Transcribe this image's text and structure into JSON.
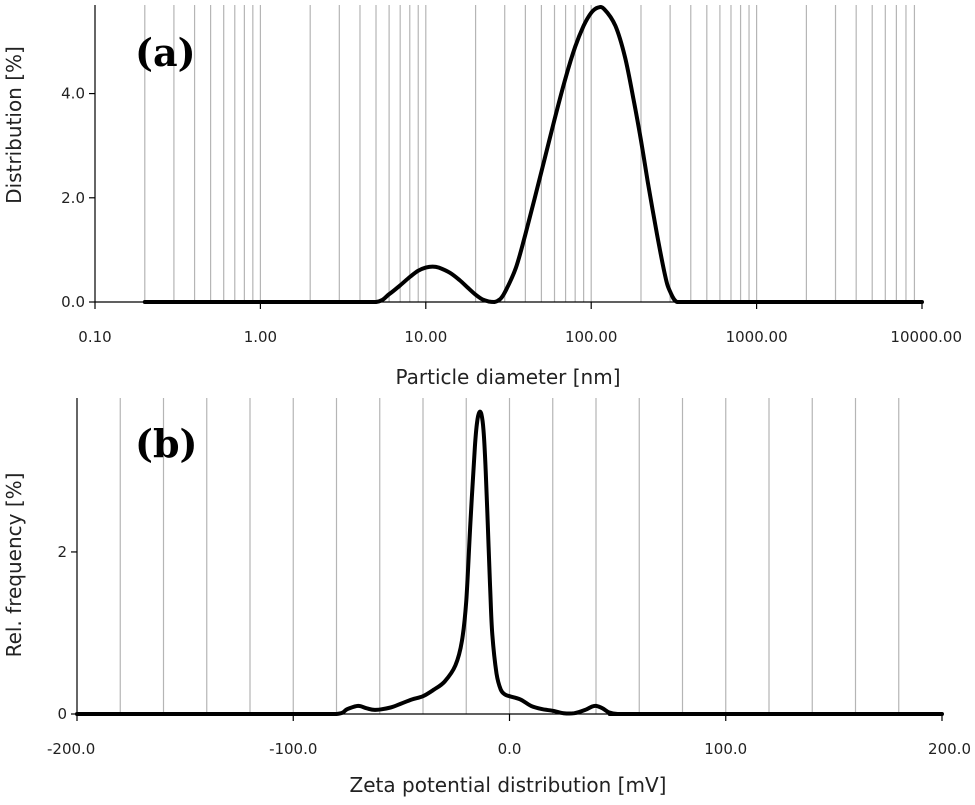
{
  "chart_data": [
    {
      "type": "line",
      "panel_label": "(a)",
      "xlabel": "Particle diameter [nm]",
      "ylabel": "Distribution [%]",
      "xscale": "log",
      "xlim": [
        0.1,
        10000
      ],
      "ylim": [
        0,
        5.7
      ],
      "xticks": [
        {
          "value": 0.1,
          "label": "0.10"
        },
        {
          "value": 1,
          "label": "1.00"
        },
        {
          "value": 10,
          "label": "10.00"
        },
        {
          "value": 100,
          "label": "100.00"
        },
        {
          "value": 1000,
          "label": "1000.00"
        },
        {
          "value": 10000,
          "label": "10000.00"
        }
      ],
      "yticks": [
        {
          "value": 0,
          "label": "0.0"
        },
        {
          "value": 2,
          "label": "2.0"
        },
        {
          "value": 4,
          "label": "4.0"
        }
      ],
      "grid": "vertical",
      "series": [
        {
          "x": [
            0.2,
            1,
            3,
            5,
            6,
            7,
            8,
            9,
            10,
            11,
            12,
            14,
            16,
            18,
            20,
            22,
            24,
            26,
            28,
            30,
            35,
            40,
            50,
            60,
            70,
            80,
            90,
            100,
            110,
            120,
            140,
            160,
            180,
            200,
            220,
            250,
            280,
            300,
            330,
            400,
            1000,
            10000
          ],
          "y": [
            0,
            0,
            0,
            0,
            0.15,
            0.32,
            0.48,
            0.6,
            0.66,
            0.68,
            0.66,
            0.56,
            0.42,
            0.27,
            0.14,
            0.05,
            0.01,
            0,
            0.05,
            0.18,
            0.65,
            1.3,
            2.5,
            3.5,
            4.3,
            4.9,
            5.3,
            5.55,
            5.65,
            5.62,
            5.3,
            4.7,
            3.9,
            3.1,
            2.3,
            1.3,
            0.5,
            0.2,
            0,
            0,
            0,
            0
          ]
        }
      ]
    },
    {
      "type": "line",
      "panel_label": "(b)",
      "xlabel": "Zeta potential distribution [mV]",
      "ylabel": "Rel. frequency [%]",
      "xlim": [
        -200,
        200
      ],
      "ylim": [
        0,
        3.9
      ],
      "xticks": [
        {
          "value": -200,
          "label": "-200.0"
        },
        {
          "value": -100,
          "label": "-100.0"
        },
        {
          "value": 0,
          "label": "0.0"
        },
        {
          "value": 100,
          "label": "100.0"
        },
        {
          "value": 200,
          "label": "200.0"
        }
      ],
      "yticks": [
        {
          "value": 0,
          "label": "0"
        },
        {
          "value": 2,
          "label": "2"
        }
      ],
      "grid": "vertical",
      "series": [
        {
          "x": [
            -200,
            -100,
            -80,
            -75,
            -70,
            -66,
            -62,
            -55,
            -50,
            -45,
            -40,
            -35,
            -30,
            -25,
            -22,
            -20,
            -18,
            -16,
            -15,
            -14,
            -13,
            -12,
            -11,
            -10,
            -9,
            -8,
            -6,
            -4,
            -2,
            0,
            5,
            10,
            15,
            20,
            25,
            30,
            35,
            38,
            40,
            43,
            46,
            50,
            60,
            200
          ],
          "y": [
            0,
            0,
            0,
            0.06,
            0.1,
            0.07,
            0.05,
            0.08,
            0.13,
            0.18,
            0.22,
            0.3,
            0.4,
            0.6,
            0.9,
            1.4,
            2.4,
            3.3,
            3.6,
            3.72,
            3.7,
            3.5,
            3.0,
            2.3,
            1.6,
            1.0,
            0.5,
            0.3,
            0.24,
            0.22,
            0.18,
            0.1,
            0.06,
            0.04,
            0.01,
            0.01,
            0.05,
            0.09,
            0.1,
            0.07,
            0.02,
            0,
            0,
            0
          ]
        }
      ]
    }
  ]
}
